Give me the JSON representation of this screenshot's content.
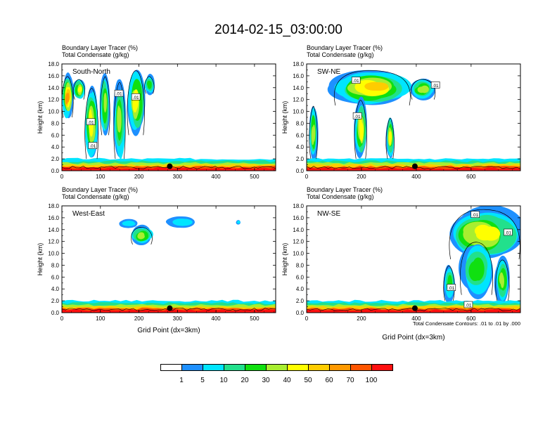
{
  "page": {
    "title": "2014-02-15_03:00:00",
    "contour_note": "Total Condensate Contours: .01 to .01 by .000"
  },
  "colorbar": {
    "colors": [
      "#ffffff",
      "#1e90ff",
      "#00e5ff",
      "#22e08c",
      "#10e010",
      "#a8ee30",
      "#ffff00",
      "#ffcc00",
      "#ff9900",
      "#ff5500",
      "#ff1010"
    ],
    "labels": [
      "1",
      "5",
      "10",
      "20",
      "30",
      "40",
      "50",
      "60",
      "70",
      "100"
    ]
  },
  "chart_data": [
    {
      "type": "heatmap",
      "panel": "South-North",
      "title_lines": [
        "Boundary Layer Tracer   (%)",
        "Total Condensate   (g/kg)"
      ],
      "ylabel": "Height (km)",
      "xlabel": "",
      "xlim": [
        0,
        555
      ],
      "ylim": [
        0,
        18
      ],
      "xticks": [
        0,
        100,
        200,
        300,
        400,
        500
      ],
      "yticks": [
        "0.0",
        "2.0",
        "4.0",
        "6.0",
        "8.0",
        "10.0",
        "12.0",
        "14.0",
        "16.0",
        "18.0"
      ],
      "marker_x": 280,
      "contour_labels": [
        {
          "text": ".01",
          "x": 148,
          "y": 13.0
        },
        {
          "text": ".01",
          "x": 192,
          "y": 12.4
        },
        {
          "text": ".01",
          "x": 75,
          "y": 8.2
        },
        {
          "text": ".01",
          "x": 80,
          "y": 4.2
        }
      ],
      "plumes": [
        {
          "x": [
            0,
            30
          ],
          "y": [
            9,
            16
          ],
          "v": 62
        },
        {
          "x": [
            30,
            60
          ],
          "y": [
            12,
            15.5
          ],
          "v": 40
        },
        {
          "x": [
            60,
            95
          ],
          "y": [
            2,
            14
          ],
          "v": 45
        },
        {
          "x": [
            100,
            125
          ],
          "y": [
            6,
            16
          ],
          "v": 35
        },
        {
          "x": [
            135,
            165
          ],
          "y": [
            2,
            15
          ],
          "v": 38
        },
        {
          "x": [
            170,
            215
          ],
          "y": [
            6,
            17
          ],
          "v": 45
        },
        {
          "x": [
            215,
            240
          ],
          "y": [
            13,
            16
          ],
          "v": 25
        }
      ]
    },
    {
      "type": "heatmap",
      "panel": "SW-NE",
      "title_lines": [
        "Boundary Layer Tracer   (%)",
        "Total Condensate   (g/kg)"
      ],
      "ylabel": "Height (km)",
      "xlabel": "",
      "xlim": [
        0,
        780
      ],
      "ylim": [
        0,
        18
      ],
      "xticks": [
        0,
        200,
        400,
        600
      ],
      "yticks": [
        "0.0",
        "2.0",
        "4.0",
        "6.0",
        "8.0",
        "10.0",
        "12.0",
        "14.0",
        "16.0",
        "18.0"
      ],
      "marker_x": 395,
      "contour_labels": [
        {
          "text": ".01",
          "x": 180,
          "y": 15.2
        },
        {
          "text": ".01",
          "x": 470,
          "y": 14.4
        },
        {
          "text": ".01",
          "x": 185,
          "y": 9.2
        }
      ],
      "plumes": [
        {
          "x": [
            100,
            380
          ],
          "y": [
            11,
            17
          ],
          "v": 50
        },
        {
          "x": [
            380,
            470
          ],
          "y": [
            12,
            15.5
          ],
          "v": 30
        },
        {
          "x": [
            175,
            220
          ],
          "y": [
            2,
            12
          ],
          "v": 40
        },
        {
          "x": [
            290,
            320
          ],
          "y": [
            2,
            9
          ],
          "v": 45
        },
        {
          "x": [
            10,
            40
          ],
          "y": [
            2,
            11
          ],
          "v": 30
        }
      ]
    },
    {
      "type": "heatmap",
      "panel": "West-East",
      "title_lines": [
        "Boundary Layer Tracer   (%)",
        "Total Condensate   (g/kg)"
      ],
      "ylabel": "Height (km)",
      "xlabel": "Grid Point (dx=3km)",
      "xlim": [
        0,
        555
      ],
      "ylim": [
        0,
        18
      ],
      "xticks": [
        0,
        100,
        200,
        300,
        400,
        500
      ],
      "yticks": [
        "0.0",
        "2.0",
        "4.0",
        "6.0",
        "8.0",
        "10.0",
        "12.0",
        "14.0",
        "16.0",
        "18.0"
      ],
      "marker_x": 280,
      "contour_labels": [],
      "plumes": [
        {
          "x": [
            180,
            235
          ],
          "y": [
            11.5,
            14.5
          ],
          "v": 30
        },
        {
          "x": [
            150,
            195
          ],
          "y": [
            14.3,
            15.7
          ],
          "v": 5
        },
        {
          "x": [
            275,
            345
          ],
          "y": [
            14.3,
            16.1
          ],
          "v": 5
        },
        {
          "x": [
            453,
            463
          ],
          "y": [
            14.8,
            15.6
          ],
          "v": 5
        }
      ]
    },
    {
      "type": "heatmap",
      "panel": "NW-SE",
      "title_lines": [
        "Boundary Layer Tracer   (%)",
        "Total Condensate   (g/kg)"
      ],
      "ylabel": "Height (km)",
      "xlabel": "Grid Point (dx=3km)",
      "xlim": [
        0,
        780
      ],
      "ylim": [
        0,
        18
      ],
      "xticks": [
        0,
        200,
        400,
        600
      ],
      "yticks": [
        "0.0",
        "2.0",
        "4.0",
        "6.0",
        "8.0",
        "10.0",
        "12.0",
        "14.0",
        "16.0",
        "18.0"
      ],
      "marker_x": 395,
      "contour_labels": [
        {
          "text": ".01",
          "x": 615,
          "y": 16.5
        },
        {
          "text": ".01",
          "x": 735,
          "y": 13.5
        },
        {
          "text": ".01",
          "x": 528,
          "y": 4.2
        },
        {
          "text": ".01",
          "x": 590,
          "y": 1.3
        }
      ],
      "plumes": [
        {
          "x": [
            520,
            780
          ],
          "y": [
            9,
            17.5
          ],
          "v": 45
        },
        {
          "x": [
            560,
            680
          ],
          "y": [
            3,
            12
          ],
          "v": 25
        },
        {
          "x": [
            690,
            740
          ],
          "y": [
            2,
            9
          ],
          "v": 30
        },
        {
          "x": [
            500,
            540
          ],
          "y": [
            2,
            8
          ],
          "v": 20
        }
      ]
    }
  ]
}
